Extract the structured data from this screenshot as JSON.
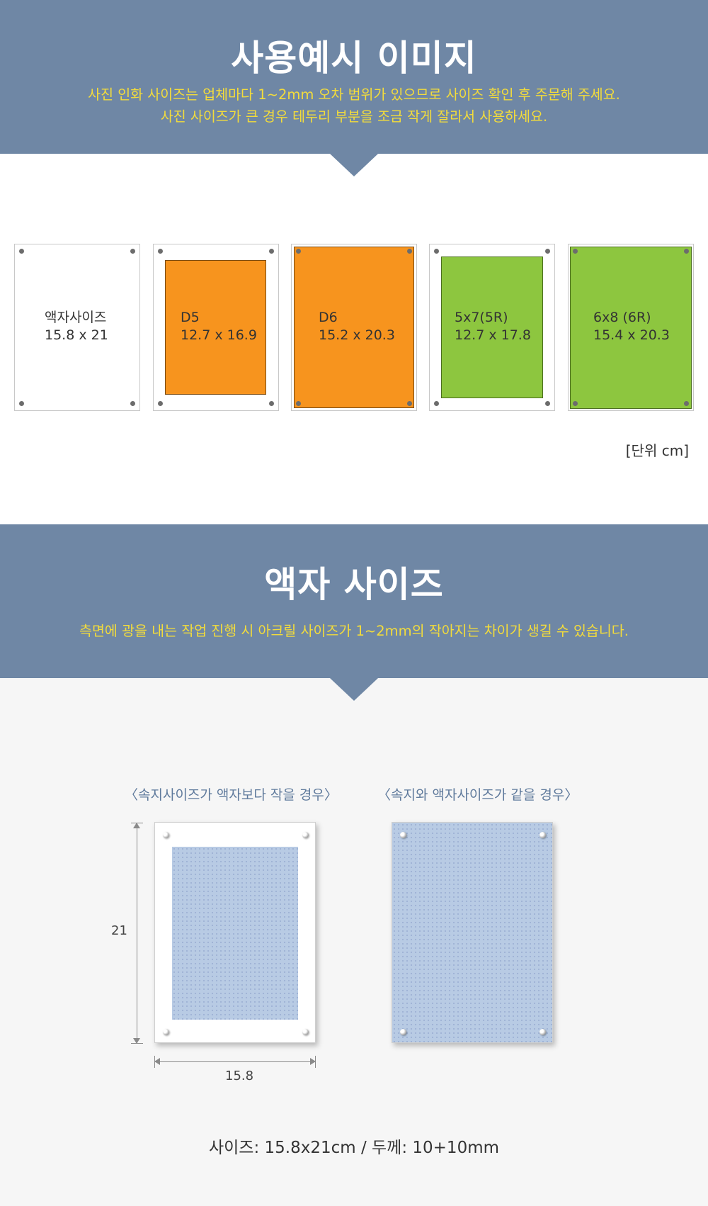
{
  "section1": {
    "title": "사용예시 이미지",
    "subtitle_line1": "사진 인화 사이즈는 업체마다 1~2mm 오차 범위가 있으므로 사이즈 확인 후 주문해 주세요.",
    "subtitle_line2": "사진 사이즈가 큰 경우 테두리 부분을 조금 작게 잘라서 사용하세요."
  },
  "cards": [
    {
      "name": "액자사이즈",
      "size": "15.8 x 21",
      "fill": "none"
    },
    {
      "name": "D5",
      "size": "12.7 x 16.9",
      "fill": "#f7941e"
    },
    {
      "name": "D6",
      "size": "15.2 x 20.3",
      "fill": "#f7941e"
    },
    {
      "name": "5x7(5R)",
      "size": "12.7 x 17.8",
      "fill": "#8dc63f"
    },
    {
      "name": "6x8 (6R)",
      "size": "15.4 x 20.3",
      "fill": "#8dc63f"
    }
  ],
  "unit_label": "[단위 cm]",
  "section2": {
    "title": "액자 사이즈",
    "subtitle": "측면에 광을 내는 작업 진행 시 아크릴 사이즈가 1~2mm의 작아지는 차이가 생길 수 있습니다."
  },
  "diagram": {
    "caption_small": "〈속지사이즈가 액자보다 작을 경우〉",
    "caption_same": "〈속지와 액자사이즈가 같을 경우〉",
    "height_label": "21",
    "width_label": "15.8"
  },
  "spec": "사이즈: 15.8x21cm  /  두께:  10+10mm",
  "colors": {
    "banner": "#6f87a5",
    "subtitle": "#f3dc3b",
    "orange": "#f7941e",
    "green": "#8dc63f",
    "paper_blue": "#b8cbe4",
    "caption": "#5f7a9c"
  }
}
